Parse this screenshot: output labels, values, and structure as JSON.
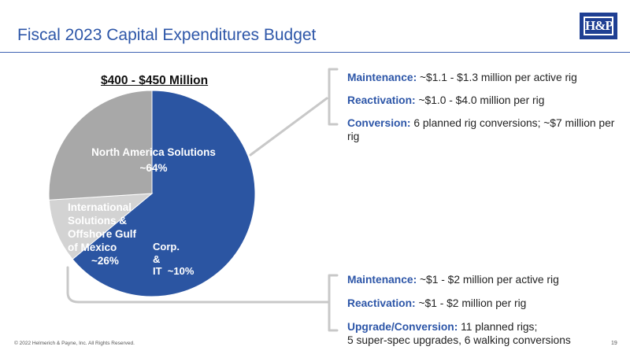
{
  "header": {
    "title": "Fiscal 2023 Capital Expenditures Budget",
    "logo_text": "H&P"
  },
  "chart_data": {
    "type": "pie",
    "title": "$400 - $450 Million",
    "slices": [
      {
        "name": "North America Solutions",
        "pct_label": "~64%",
        "value": 64,
        "color": "#2b55a2"
      },
      {
        "name": "Corp. & IT",
        "pct_label": "~10%",
        "value": 10,
        "color": "#d3d3d3"
      },
      {
        "name": "International Solutions & Offshore Gulf of Mexico",
        "pct_label": "~26%",
        "value": 26,
        "color": "#a8a8a8"
      }
    ]
  },
  "labels": {
    "nas_name": "North America Solutions",
    "nas_pct": "~64%",
    "intl_name": "International Solutions & Offshore Gulf of Mexico",
    "intl_pct": "~26%",
    "corp_line1": "Corp.",
    "corp_line2": "&",
    "corp_line3": "IT",
    "corp_pct": "~10%"
  },
  "top_panel": {
    "items": [
      {
        "key": "Maintenance:",
        "text": " ~$1.1 - $1.3 million per active rig"
      },
      {
        "key": "Reactivation:",
        "text": " ~$1.0 - $4.0 million per rig"
      },
      {
        "key": "Conversion:",
        "text": " 6 planned rig conversions; ~$7 million per rig"
      }
    ]
  },
  "bottom_panel": {
    "items": [
      {
        "key": "Maintenance:",
        "text": " ~$1 - $2 million per active rig"
      },
      {
        "key": "Reactivation:",
        "text": " ~$1 - $2 million per rig"
      },
      {
        "key": "Upgrade/Conversion:",
        "text": " 11 planned rigs;",
        "text2": "5 super-spec upgrades, 6 walking conversions"
      }
    ]
  },
  "footer": {
    "copyright": "© 2022 Helmerich & Payne, Inc.  All Rights Reserved.",
    "page": "19"
  },
  "colors": {
    "accent": "#2d56a8",
    "connector": "#c8c8c8"
  }
}
